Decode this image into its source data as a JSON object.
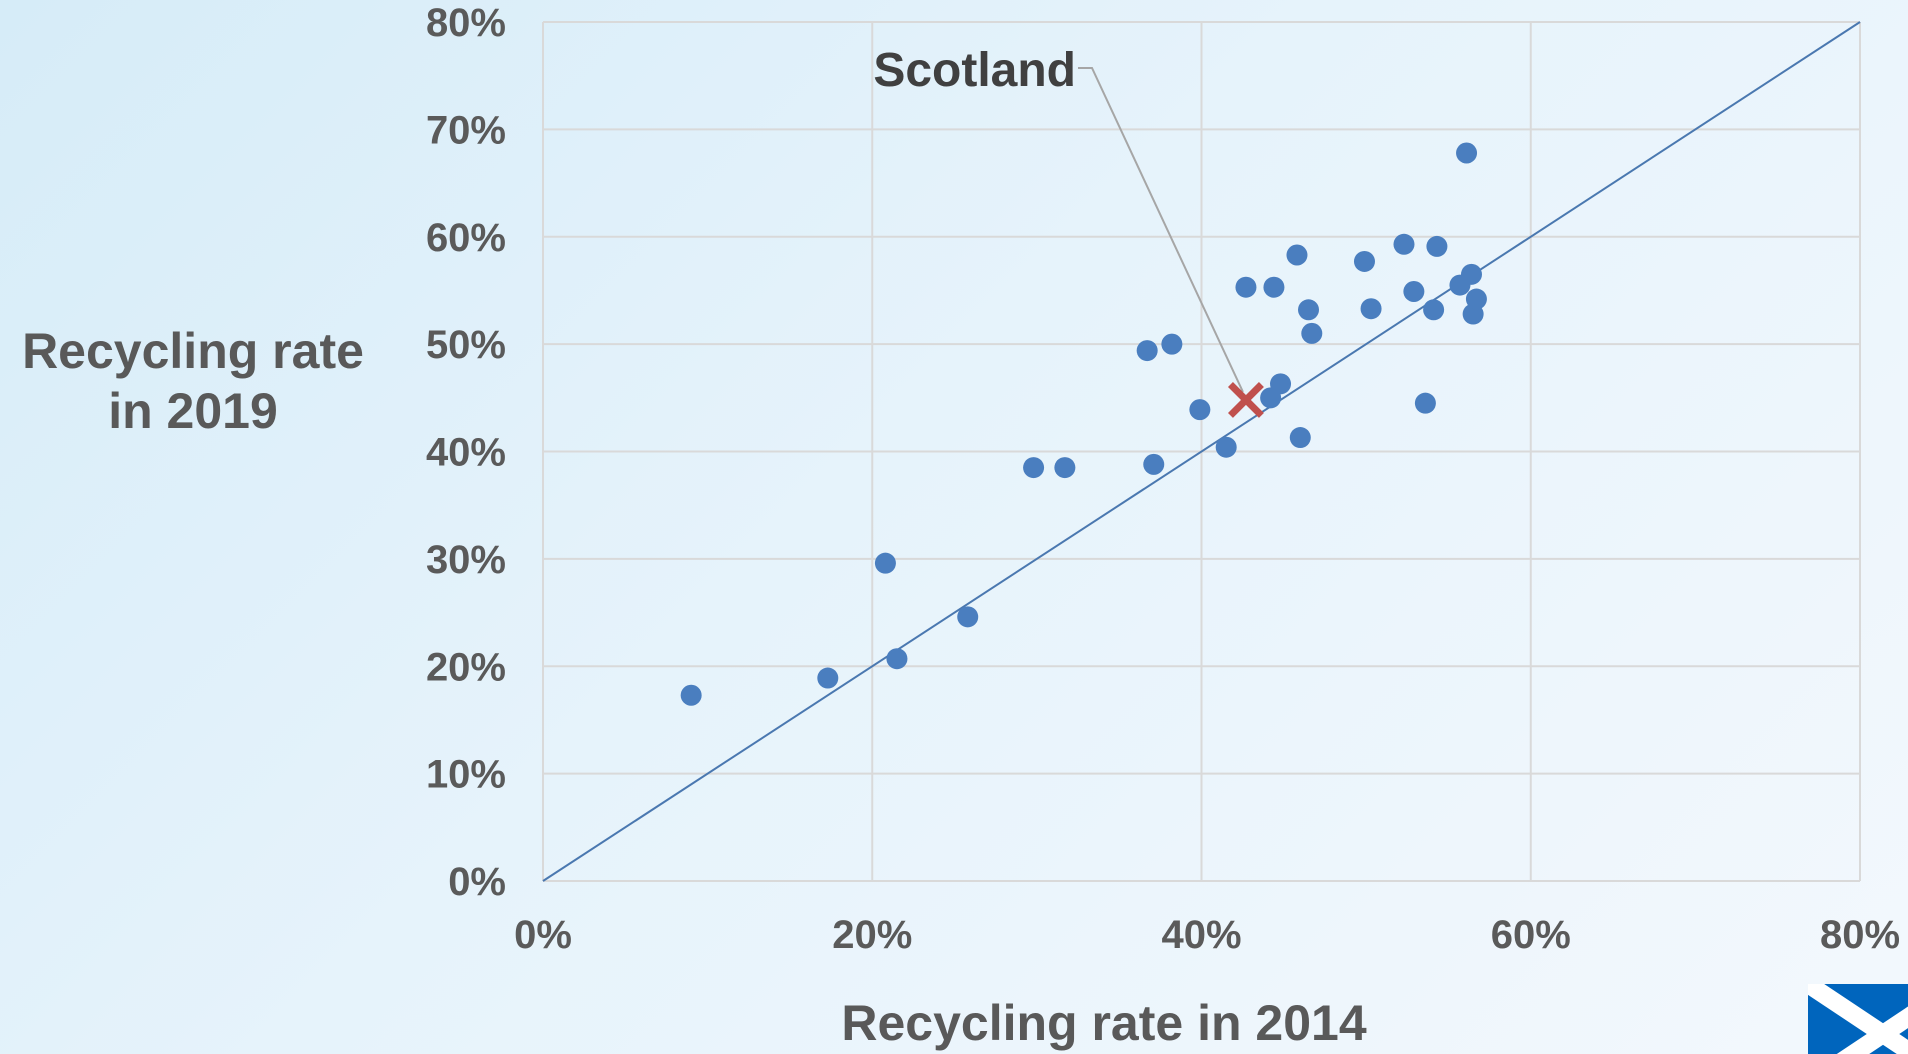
{
  "chart_data": {
    "type": "scatter",
    "xlabel": "Recycling rate in 2014",
    "ylabel_lines": [
      "Recycling rate",
      "in 2019"
    ],
    "xlim": [
      0,
      80
    ],
    "ylim": [
      0,
      80
    ],
    "x_ticks": [
      0,
      20,
      40,
      60,
      80
    ],
    "y_ticks": [
      0,
      10,
      20,
      30,
      40,
      50,
      60,
      70,
      80
    ],
    "tick_suffix": "%",
    "grid": true,
    "reference_line": {
      "from": [
        0,
        0
      ],
      "to": [
        80,
        80
      ],
      "color": "#4a78b0"
    },
    "series": [
      {
        "color": "#4a7ebf",
        "marker": "circle",
        "points": [
          [
            9.0,
            17.3
          ],
          [
            17.3,
            18.9
          ],
          [
            20.8,
            29.6
          ],
          [
            21.5,
            20.7
          ],
          [
            25.8,
            24.6
          ],
          [
            29.8,
            38.5
          ],
          [
            31.7,
            38.5
          ],
          [
            36.7,
            49.4
          ],
          [
            37.1,
            38.8
          ],
          [
            38.2,
            50.0
          ],
          [
            39.9,
            43.9
          ],
          [
            41.5,
            40.4
          ],
          [
            42.7,
            55.3
          ],
          [
            44.2,
            45.0
          ],
          [
            44.4,
            55.3
          ],
          [
            44.8,
            46.3
          ],
          [
            45.8,
            58.3
          ],
          [
            46.0,
            41.3
          ],
          [
            46.5,
            53.2
          ],
          [
            46.7,
            51.0
          ],
          [
            49.9,
            57.7
          ],
          [
            50.3,
            53.3
          ],
          [
            52.3,
            59.3
          ],
          [
            52.9,
            54.9
          ],
          [
            53.6,
            44.5
          ],
          [
            54.1,
            53.2
          ],
          [
            54.3,
            59.1
          ],
          [
            55.7,
            55.5
          ],
          [
            56.1,
            67.8
          ],
          [
            56.4,
            56.5
          ],
          [
            56.5,
            52.8
          ],
          [
            56.7,
            54.2
          ]
        ]
      },
      {
        "name": "Scotland",
        "color": "#c0504d",
        "marker": "cross",
        "points": [
          [
            42.7,
            44.8
          ]
        ]
      }
    ],
    "annotations": [
      {
        "text": "Scotland",
        "target": [
          42.7,
          44.8
        ]
      }
    ]
  },
  "logo": {
    "name": "saltire-logo",
    "colors": {
      "blue": "#0065bd",
      "white": "#ffffff"
    }
  }
}
